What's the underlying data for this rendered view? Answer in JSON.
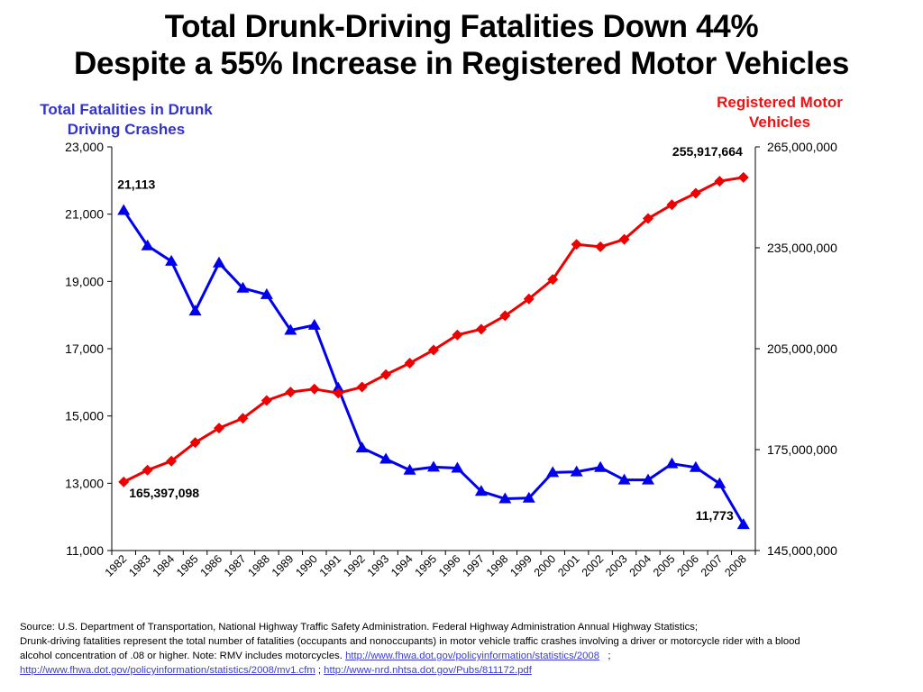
{
  "title_line1": "Total Drunk-Driving Fatalities Down 44%",
  "title_line2": "Despite a 55% Increase in Registered Motor Vehicles",
  "chart_data": {
    "type": "line",
    "categories": [
      "1982",
      "1983",
      "1984",
      "1985",
      "1986",
      "1987",
      "1988",
      "1989",
      "1990",
      "1991",
      "1992",
      "1993",
      "1994",
      "1995",
      "1996",
      "1997",
      "1998",
      "1999",
      "2000",
      "2001",
      "2002",
      "2003",
      "2004",
      "2005",
      "2006",
      "2007",
      "2008"
    ],
    "left_axis": {
      "label": "Total Fatalities in Drunk Driving Crashes",
      "range": [
        11000,
        23000
      ],
      "ticks": [
        "23,000",
        "21,000",
        "19,000",
        "17,000",
        "15,000",
        "13,000",
        "11,000"
      ],
      "tick_values": [
        23000,
        21000,
        19000,
        17000,
        15000,
        13000,
        11000
      ]
    },
    "right_axis": {
      "label": "Registered Motor Vehicles",
      "range": [
        145000000,
        265000000
      ],
      "ticks": [
        "265,000,000",
        "235,000,000",
        "205,000,000",
        "175,000,000",
        "145,000,000"
      ],
      "tick_values": [
        265000000,
        235000000,
        205000000,
        175000000,
        145000000
      ]
    },
    "series": [
      {
        "axis": "left",
        "color": "#0000ee",
        "marker": "triangle",
        "values": [
          21113,
          20060,
          19600,
          18120,
          19550,
          18800,
          18610,
          17550,
          17700,
          15830,
          14050,
          13720,
          13390,
          13480,
          13450,
          12760,
          12540,
          12560,
          13320,
          13340,
          13470,
          13100,
          13100,
          13580,
          13470,
          12990,
          11773
        ]
      },
      {
        "axis": "right",
        "color": "#ee0000",
        "marker": "diamond",
        "values": [
          165397098,
          168900000,
          171600000,
          177100000,
          181400000,
          184300000,
          189600000,
          192100000,
          193000000,
          191800000,
          193600000,
          197300000,
          200700000,
          204600000,
          209100000,
          210800000,
          214800000,
          219800000,
          225600000,
          236000000,
          235300000,
          237500000,
          243700000,
          247800000,
          251200000,
          254800000,
          255917664
        ]
      }
    ],
    "annotations": [
      "21,113",
      "11,773",
      "165,397,098",
      "255,917,664"
    ]
  },
  "source": {
    "line1": "Source: U.S. Department of Transportation, National Highway Traffic Safety Administration.  Federal Highway Administration Annual Highway Statistics;",
    "line2": "Drunk-driving fatalities represent the total number of fatalities (occupants and nonoccupants) in motor vehicle traffic crashes involving a driver or motorcycle rider with a blood",
    "line3_text": "alcohol concentration of .08 or higher. Note: RMV includes motorcycles.",
    "link1": "http://www.fhwa.dot.gov/policyinformation/statistics/2008",
    "sep1": ";",
    "link2": "http://www.fhwa.dot.gov/policyinformation/statistics/2008/mv1.cfm",
    "sep2": ";",
    "link3": "http://www-nrd.nhtsa.dot.gov/Pubs/811172.pdf"
  }
}
